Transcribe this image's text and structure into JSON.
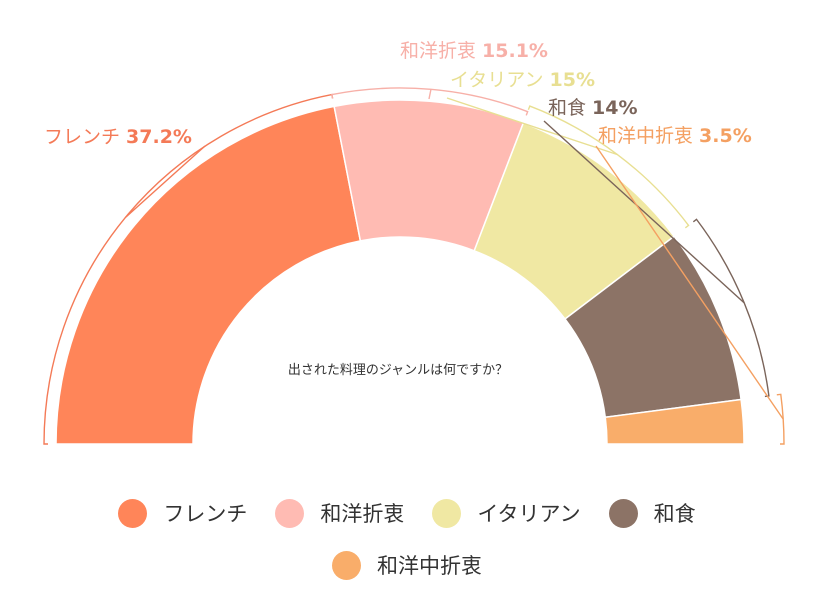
{
  "chart_data": {
    "type": "pie",
    "variant": "semicircle-donut",
    "title": "出された料理のジャンルは何ですか？",
    "categories": [
      "フレンチ",
      "和洋折衷",
      "イタリアン",
      "和食",
      "和洋中折衷"
    ],
    "values": [
      37.2,
      15.1,
      15,
      14,
      3.5
    ],
    "value_labels": [
      "37.2%",
      "15.1%",
      "15%",
      "14%",
      "3.5%"
    ],
    "colors": [
      "#FF8559",
      "#FFBBB3",
      "#F0E8A3",
      "#8C7366",
      "#F9AD6A"
    ],
    "label_colors": [
      "#F47A57",
      "#F7B0A8",
      "#E8DF92",
      "#7A645A",
      "#F4A062"
    ],
    "legend_position": "bottom"
  },
  "legend": {
    "items": [
      {
        "label": "フレンチ",
        "color": "#FF8559"
      },
      {
        "label": "和洋折衷",
        "color": "#FFBBB3"
      },
      {
        "label": "イタリアン",
        "color": "#F0E8A3"
      },
      {
        "label": "和食",
        "color": "#8C7366"
      },
      {
        "label": "和洋中折衷",
        "color": "#F9AD6A"
      }
    ]
  }
}
